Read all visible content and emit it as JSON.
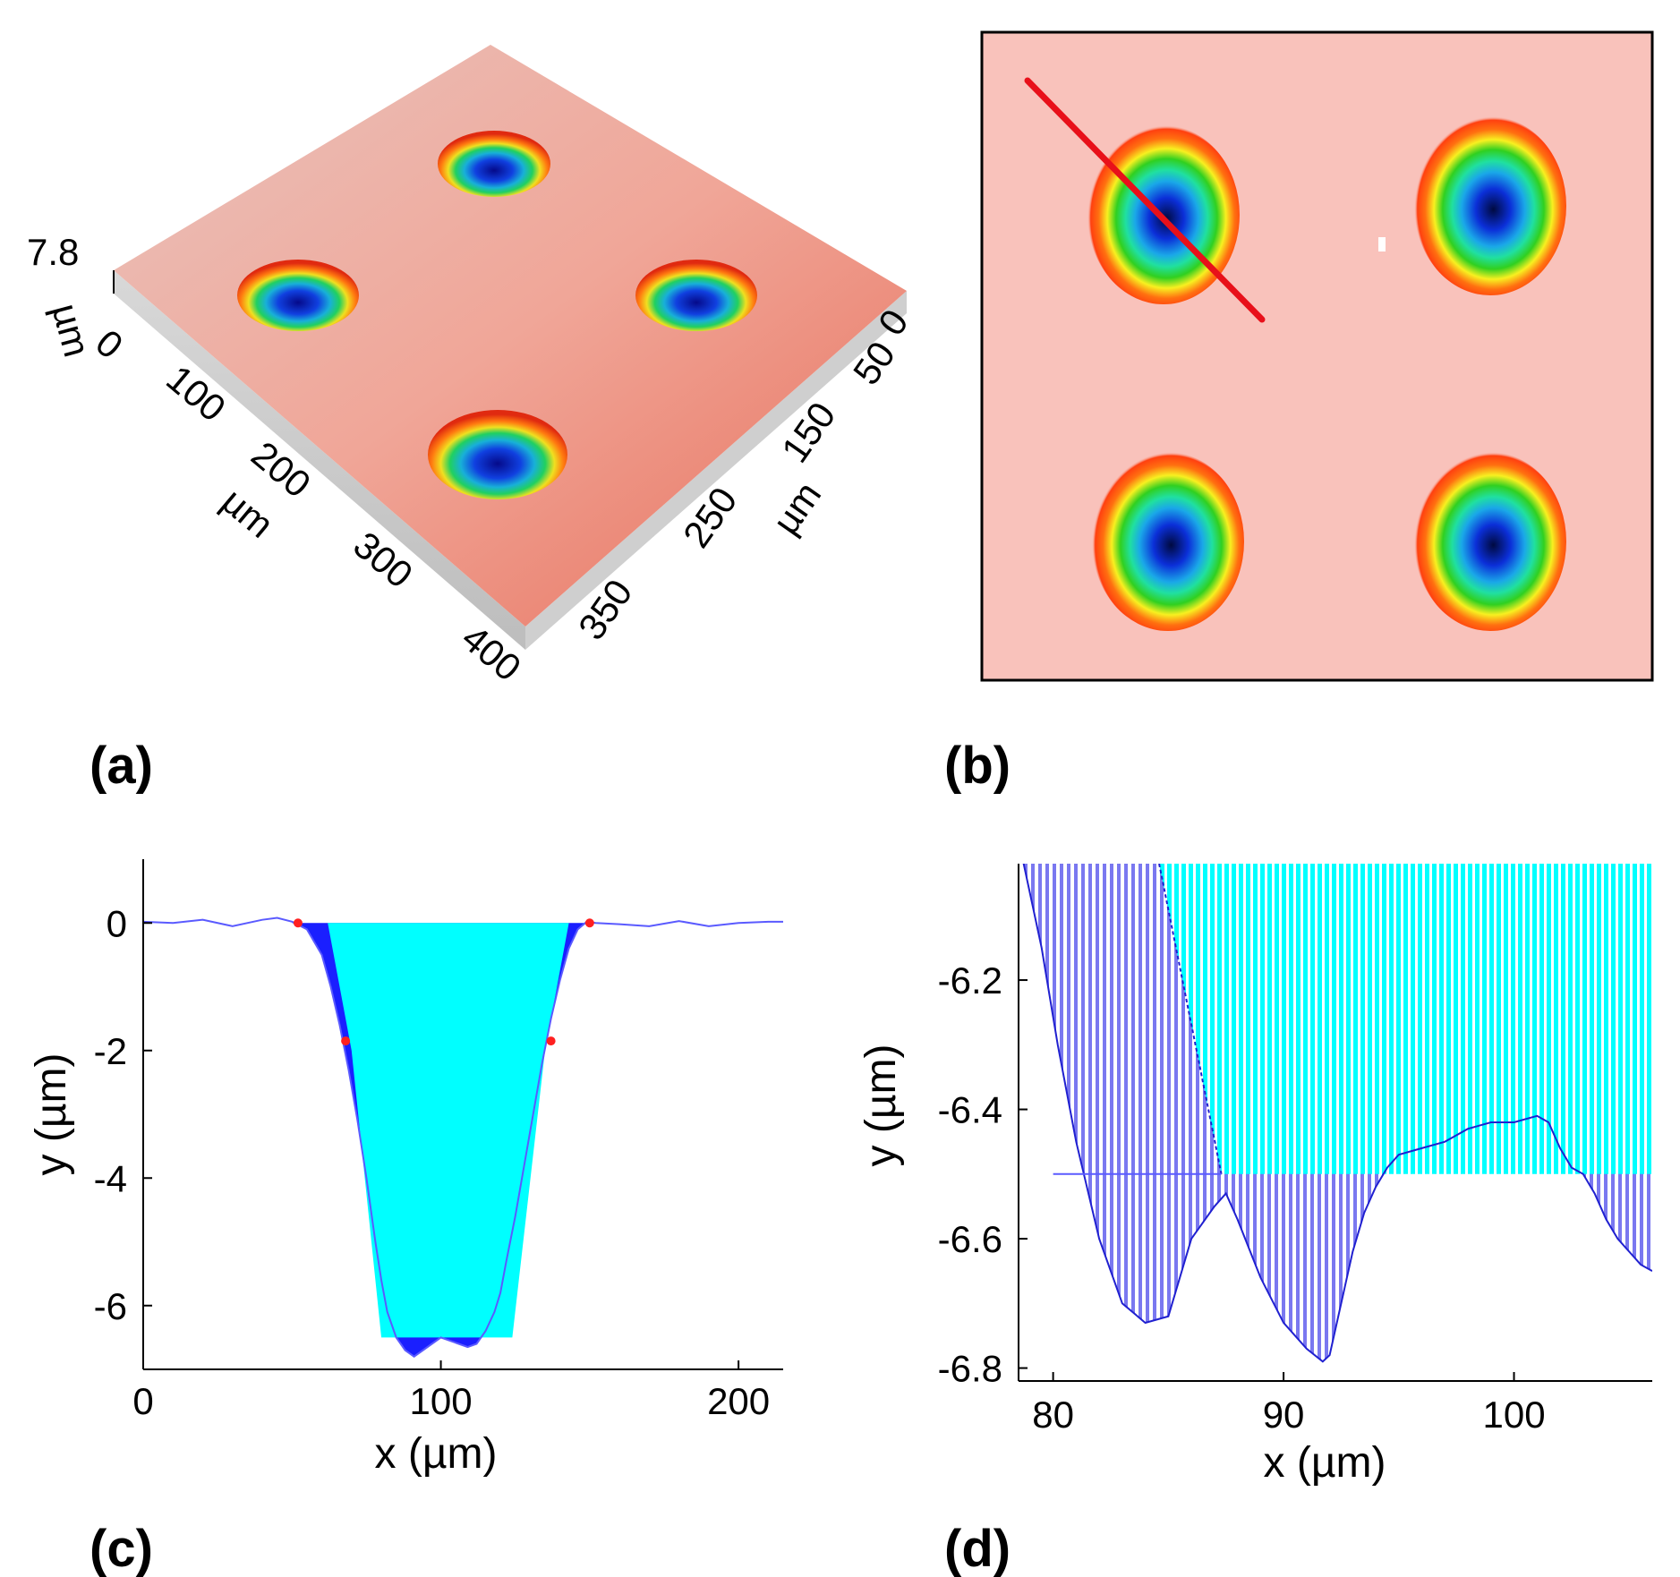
{
  "colors": {
    "surface": "#f1a79c",
    "map_bg": "#f9c2bb",
    "section_line": "#e8101a",
    "fill_cyan": "#00ffff",
    "fill_blue": "#1a1fff",
    "profile_line": "#5a5aff",
    "hatch_blue": "#7a78f0",
    "marker_red": "#ff2020"
  },
  "panels": {
    "a": {
      "label": "(a)",
      "z_max_label": "7.8",
      "z_unit": "µm",
      "z_zero": "0",
      "x_ticks": [
        "100",
        "200",
        "300",
        "400"
      ],
      "x_unit": "µm",
      "y_ticks": [
        "0",
        "50",
        "150",
        "250",
        "350"
      ],
      "y_unit": "µm"
    },
    "b": {
      "label": "(b)"
    },
    "c": {
      "label": "(c)"
    },
    "d": {
      "label": "(d)"
    }
  },
  "chart_data": [
    {
      "panel": "c",
      "type": "area",
      "title": "",
      "xlabel": "x (µm)",
      "ylabel": "y (µm)",
      "xlim": [
        0,
        215
      ],
      "ylim": [
        -7,
        1
      ],
      "xticks": [
        0,
        100,
        200
      ],
      "yticks": [
        0,
        -2,
        -4,
        -6
      ],
      "series": [
        {
          "name": "profile",
          "x": [
            0,
            10,
            20,
            30,
            40,
            45,
            50,
            55,
            60,
            63,
            66,
            69,
            72,
            75,
            78,
            80,
            82,
            85,
            88,
            91,
            94,
            97,
            100,
            103,
            106,
            109,
            112,
            115,
            118,
            120,
            122,
            125,
            128,
            131,
            134,
            137,
            140,
            143,
            146,
            149,
            152,
            160,
            170,
            180,
            190,
            200,
            210,
            215
          ],
          "y": [
            0.02,
            0.0,
            0.05,
            -0.05,
            0.05,
            0.08,
            0.02,
            -0.1,
            -0.5,
            -1.0,
            -1.6,
            -2.3,
            -3.1,
            -4.0,
            -5.0,
            -5.6,
            -6.1,
            -6.5,
            -6.7,
            -6.8,
            -6.7,
            -6.6,
            -6.5,
            -6.55,
            -6.6,
            -6.65,
            -6.6,
            -6.4,
            -6.1,
            -5.8,
            -5.3,
            -4.6,
            -3.8,
            -3.0,
            -2.2,
            -1.5,
            -0.9,
            -0.4,
            -0.1,
            0.02,
            0.0,
            -0.02,
            -0.05,
            0.03,
            -0.05,
            0.0,
            0.02,
            0.02
          ]
        },
        {
          "name": "cyan_fill",
          "x": [
            62,
            70,
            80,
            100,
            124,
            135,
            143
          ],
          "y": [
            0,
            -2,
            -6.5,
            -6.5,
            -6.5,
            -2,
            0
          ]
        }
      ],
      "markers": {
        "x": [
          52,
          68,
          137,
          150
        ],
        "y": [
          0,
          -1.85,
          -1.85,
          0
        ]
      }
    },
    {
      "panel": "d",
      "type": "area",
      "title": "",
      "xlabel": "x (µm)",
      "ylabel": "y (µm)",
      "xlim": [
        78.5,
        106
      ],
      "ylim": [
        -6.82,
        -6.02
      ],
      "xticks": [
        80,
        90,
        100
      ],
      "yticks": [
        -6.2,
        -6.4,
        -6.6,
        -6.8
      ],
      "series": [
        {
          "name": "profile",
          "x": [
            78.6,
            79.5,
            80.2,
            81.0,
            82.0,
            83.0,
            84.0,
            85.0,
            86.0,
            87.0,
            87.5,
            88.0,
            89.0,
            90.0,
            91.0,
            91.7,
            92.0,
            92.5,
            93.0,
            93.5,
            94.0,
            94.5,
            95.0,
            96.0,
            97.0,
            98.0,
            99.0,
            100.0,
            101.0,
            101.5,
            102.0,
            102.5,
            103.0,
            103.5,
            104.0,
            104.5,
            105.0,
            105.5,
            106.0
          ],
          "y": [
            -6.0,
            -6.15,
            -6.3,
            -6.45,
            -6.6,
            -6.7,
            -6.73,
            -6.72,
            -6.6,
            -6.55,
            -6.53,
            -6.57,
            -6.66,
            -6.73,
            -6.77,
            -6.79,
            -6.78,
            -6.7,
            -6.62,
            -6.56,
            -6.52,
            -6.49,
            -6.47,
            -6.46,
            -6.45,
            -6.43,
            -6.42,
            -6.42,
            -6.41,
            -6.42,
            -6.46,
            -6.49,
            -6.5,
            -6.53,
            -6.57,
            -6.6,
            -6.62,
            -6.64,
            -6.65
          ]
        }
      ],
      "fill_level": -6.5,
      "dark_boundary": {
        "x": [
          84.6,
          87.3
        ],
        "y": [
          -6.02,
          -6.5
        ]
      }
    }
  ]
}
